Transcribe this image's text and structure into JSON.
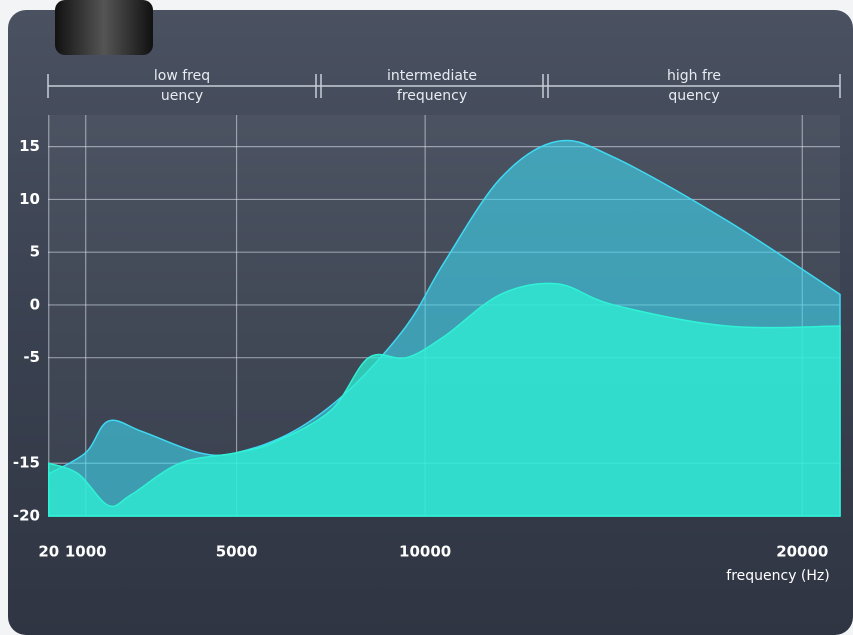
{
  "chart_data": {
    "type": "area",
    "xlabel": "frequency (Hz)",
    "xlim": [
      0,
      21000
    ],
    "xticks": [
      20,
      1000,
      5000,
      10000,
      20000
    ],
    "ylim": [
      -20,
      18
    ],
    "yticks": [
      15,
      10,
      5,
      0,
      -5,
      -15,
      -20
    ],
    "grid": true,
    "bands": [
      [
        "low freq",
        "uency"
      ],
      [
        "intermediate",
        "frequency"
      ],
      [
        "high fre",
        "quency"
      ]
    ],
    "series": [
      {
        "color": "#3fd9f2",
        "x": [
          20,
          1000,
          1600,
          2500,
          4000,
          5000,
          6500,
          8000,
          9500,
          10500,
          12000,
          13500,
          15000,
          18000,
          21000
        ],
        "values": [
          -16,
          -14,
          -11,
          -12,
          -14,
          -14,
          -12,
          -8,
          -2,
          4,
          12,
          15.5,
          14,
          8,
          1
        ]
      },
      {
        "color": "#2ff2d6",
        "x": [
          20,
          800,
          1600,
          2200,
          3500,
          5000,
          6000,
          7500,
          8500,
          9500,
          10500,
          12000,
          13500,
          15000,
          18000,
          21000
        ],
        "values": [
          -15,
          -16,
          -19,
          -18,
          -15,
          -14,
          -13,
          -10,
          -5,
          -5,
          -3,
          1,
          2,
          0,
          -2,
          -2
        ]
      }
    ]
  }
}
